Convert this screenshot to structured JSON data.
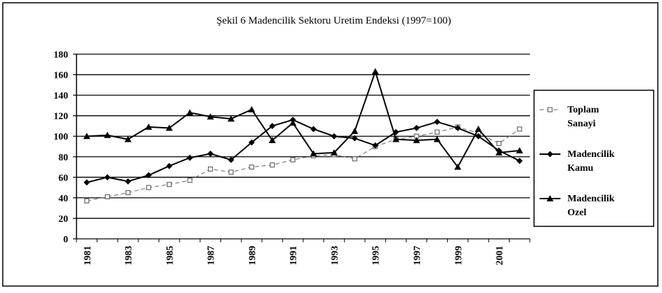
{
  "chart_data": {
    "type": "line",
    "title": "Şekil 6  Madencilik Sektoru Uretim Endeksi (1997=100)",
    "categories": [
      "1981",
      null,
      "1983",
      null,
      "1985",
      null,
      "1987",
      null,
      "1989",
      null,
      "1991",
      null,
      "1993",
      null,
      "1995",
      null,
      "1997",
      null,
      "1999",
      null,
      "2001",
      null
    ],
    "series": [
      {
        "name": "Toplam Sanayi",
        "color": "#666666",
        "marker": "square",
        "dashed": true,
        "values": [
          37,
          41,
          45,
          50,
          53,
          57,
          68,
          65,
          70,
          72,
          77,
          81,
          82,
          78,
          90,
          97,
          100,
          104,
          109,
          103,
          93,
          107
        ]
      },
      {
        "name": "Madencilik Kamu",
        "color": "#000000",
        "marker": "diamond",
        "values": [
          55,
          60,
          56,
          62,
          71,
          79,
          83,
          77,
          94,
          110,
          116,
          107,
          100,
          98,
          91,
          104,
          108,
          114,
          108,
          100,
          86,
          76
        ]
      },
      {
        "name": "Madencilik Ozel",
        "color": "#000000",
        "marker": "triangle",
        "values": [
          100,
          101,
          97,
          109,
          108,
          123,
          119,
          117,
          126,
          96,
          113,
          83,
          84,
          105,
          163,
          97,
          96,
          97,
          70,
          107,
          84,
          86
        ]
      }
    ],
    "ylim": [
      0,
      180
    ],
    "yticks": [
      0,
      20,
      40,
      60,
      80,
      100,
      120,
      140,
      160,
      180
    ],
    "grid": true,
    "legend": "right"
  }
}
